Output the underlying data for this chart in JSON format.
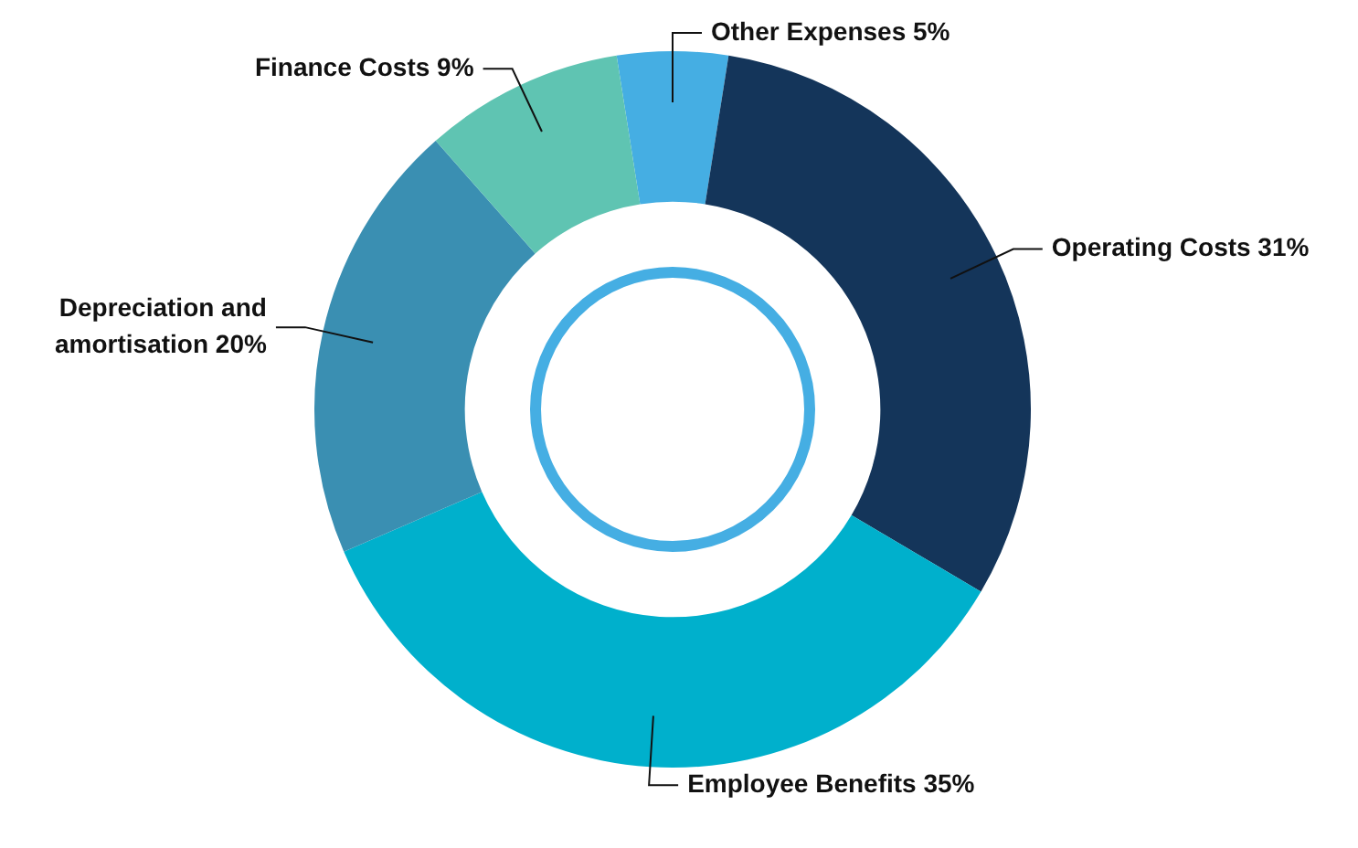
{
  "chart_data": {
    "type": "donut",
    "categories": [
      "Other Expenses 5%",
      "Operating Costs 31%",
      "Employee Benefits 35%",
      "Depreciation and amortisation 20%",
      "Finance Costs 9%"
    ],
    "values": [
      5,
      31,
      35,
      20,
      9
    ],
    "colors": [
      "#45aee3",
      "#14355a",
      "#00b0cc",
      "#3a8fb2",
      "#5fc4b2"
    ],
    "legend": false
  }
}
